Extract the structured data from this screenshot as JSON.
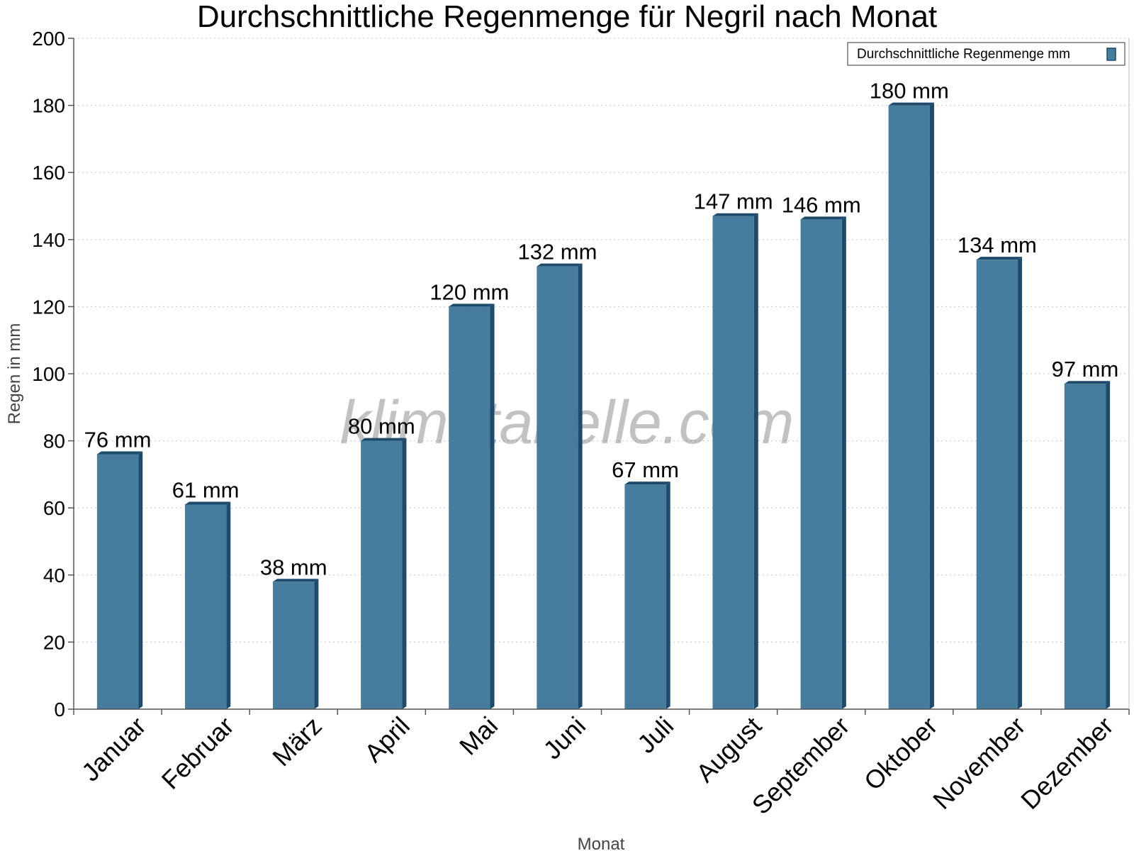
{
  "chart_data": {
    "type": "bar",
    "title": "Durchschnittliche Regenmenge für Negril nach Monat",
    "xlabel": "Monat",
    "ylabel": "Regen in mm",
    "ylim": [
      0,
      200
    ],
    "yticks": [
      0,
      20,
      40,
      60,
      80,
      100,
      120,
      140,
      160,
      180,
      200
    ],
    "grid": true,
    "legend_position": "top-right",
    "categories": [
      "Januar",
      "Februar",
      "März",
      "April",
      "Mai",
      "Juni",
      "Juli",
      "August",
      "September",
      "Oktober",
      "November",
      "Dezember"
    ],
    "series": [
      {
        "name": "Durchschnittliche Regenmenge mm",
        "values": [
          76,
          61,
          38,
          80,
          120,
          132,
          67,
          147,
          146,
          180,
          134,
          97
        ],
        "data_labels": [
          "76 mm",
          "61 mm",
          "38 mm",
          "80 mm",
          "120 mm",
          "132 mm",
          "67 mm",
          "147 mm",
          "146 mm",
          "180 mm",
          "134 mm",
          "97 mm"
        ],
        "color": "#467c9e",
        "edge_color": "#1e4a6b"
      }
    ],
    "watermark": "klimatabelle.com"
  }
}
